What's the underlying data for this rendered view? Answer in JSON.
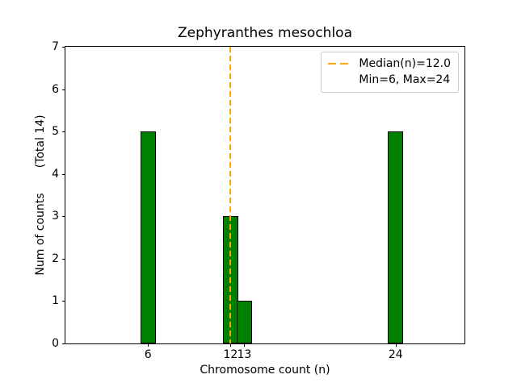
{
  "chart_data": {
    "type": "bar",
    "title": "Zephyranthes mesochloa",
    "xlabel": "Chromosome count (n)",
    "ylabel": "Num of counts       (Total 14)",
    "total_counts": 14,
    "x": [
      6,
      12,
      13,
      24
    ],
    "values": [
      5,
      3,
      1,
      5
    ],
    "bar_width_units": 1.1,
    "xlim": [
      0,
      29
    ],
    "ylim": [
      0,
      7
    ],
    "xticks": [
      "6",
      "12",
      "13",
      "24"
    ],
    "xtick_values": [
      6,
      12,
      13,
      24
    ],
    "yticks": [
      "0",
      "1",
      "2",
      "3",
      "4",
      "5",
      "6",
      "7"
    ],
    "ytick_values": [
      0,
      1,
      2,
      3,
      4,
      5,
      6,
      7
    ],
    "median_line": {
      "x": 12,
      "value_label": "12.0"
    },
    "legend": {
      "position": "upper right",
      "line1": "Median(n)=12.0",
      "line2": "Min=6, Max=24"
    },
    "grid": false,
    "colors": {
      "bar_fill": "#008000",
      "bar_edge": "#000000",
      "median": "#ffa500",
      "legend_border": "#cccccc",
      "spine": "#000000",
      "text": "#000000",
      "background": "#ffffff"
    }
  }
}
